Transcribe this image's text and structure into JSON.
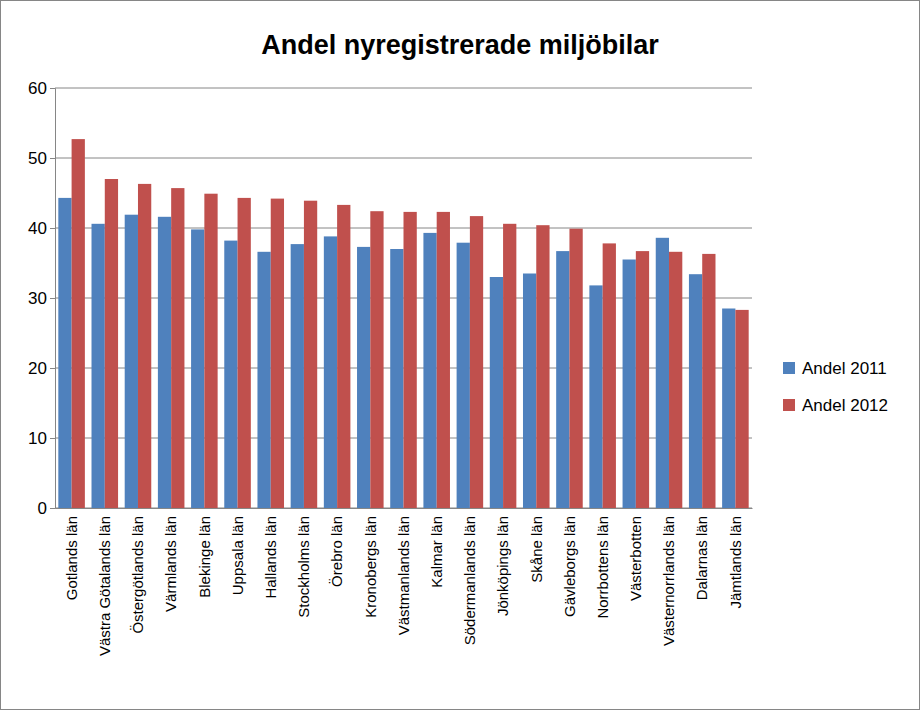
{
  "chart_data": {
    "type": "bar",
    "title": "Andel nyregistrerade miljöbilar",
    "categories": [
      "Gotlands län",
      "Västra Götalands län",
      "Östergötlands län",
      "Värmlands län",
      "Blekinge län",
      "Uppsala län",
      "Hallands län",
      "Stockholms län",
      "Örebro län",
      "Kronobergs län",
      "Västmanlands län",
      "Kalmar län",
      "Södermanlands län",
      "Jönköpings län",
      "Skåne län",
      "Gävleborgs län",
      "Norrbottens län",
      "Västerbotten",
      "Västernorrlands län",
      "Dalarnas län",
      "Jämtlands län"
    ],
    "series": [
      {
        "name": "Andel 2011",
        "color": "#4f81bd",
        "values": [
          44.3,
          40.6,
          41.9,
          41.6,
          39.8,
          38.2,
          36.6,
          37.7,
          38.8,
          37.3,
          37.0,
          39.3,
          37.9,
          33.0,
          33.5,
          36.7,
          31.8,
          35.5,
          38.6,
          33.4,
          28.5
        ]
      },
      {
        "name": "Andel 2012",
        "color": "#c0504d",
        "values": [
          52.7,
          47.0,
          46.3,
          45.7,
          44.9,
          44.3,
          44.2,
          43.9,
          43.3,
          42.4,
          42.3,
          42.3,
          41.7,
          40.6,
          40.4,
          39.9,
          37.8,
          36.7,
          36.6,
          36.3,
          28.3
        ]
      }
    ],
    "ylim": [
      0,
      60
    ],
    "yticks": [
      0,
      10,
      20,
      30,
      40,
      50,
      60
    ],
    "grid": true,
    "legend": "right"
  }
}
